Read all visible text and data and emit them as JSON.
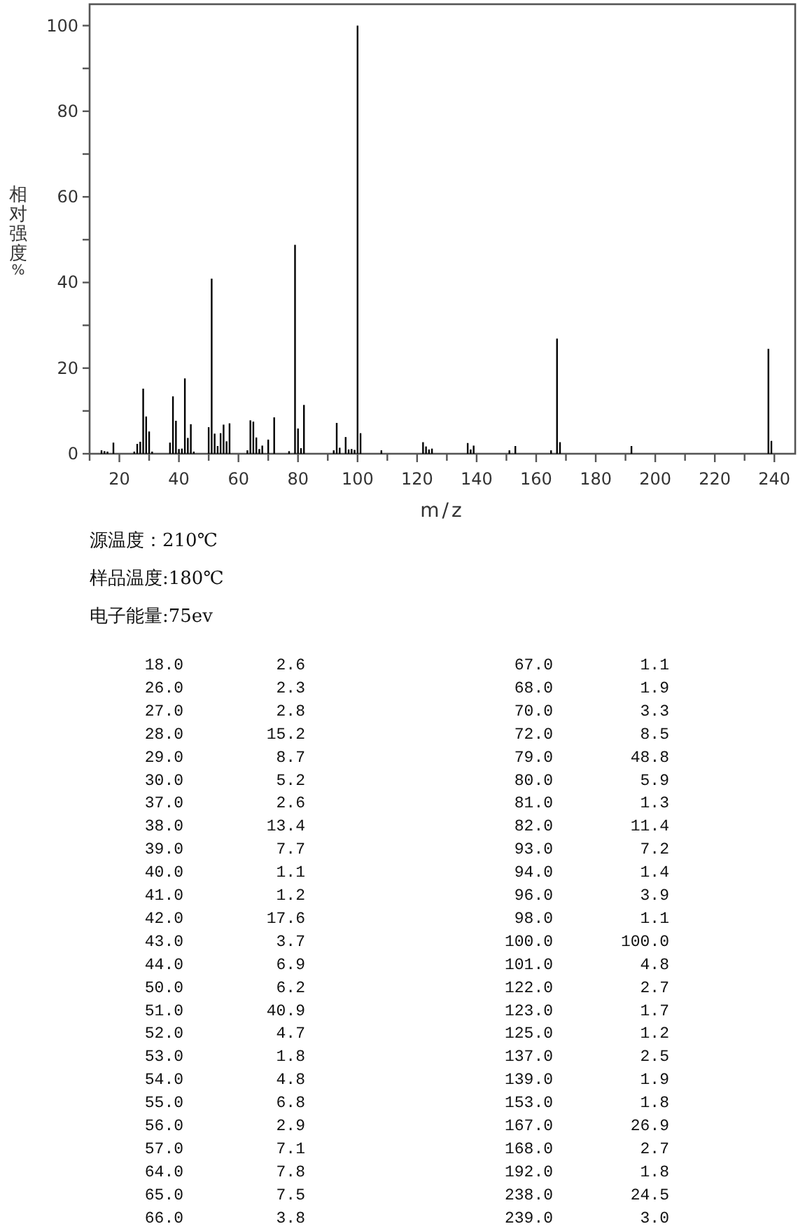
{
  "chart_data": {
    "type": "bar",
    "xlabel": "m/z",
    "ylabel": "相对强度%",
    "annotations": [
      "源温度：210℃",
      "样品温度:180℃",
      "电子能量:75ev",
      "18.0 2.6",
      "26.0 2.3",
      "27.0 2.8",
      "28.0 15.2",
      "29.0 8.7",
      "30.0 5.2",
      "37.0 2.6",
      "38.0 13.4",
      "39.0 7.7",
      "40.0 1.1",
      "41.0 1.2",
      "42.0 17.6",
      "43.0 3.7",
      "44.0 6.9",
      "50.0 6.2",
      "51.0 40.9",
      "52.0 4.7",
      "53.0 1.8",
      "54.0 4.8",
      "55.0 6.8",
      "56.0 2.9",
      "57.0 7.1",
      "64.0 7.8",
      "65.0 7.5",
      "66.0 3.8",
      "67.0 1.1",
      "68.0 1.9",
      "70.0 3.3",
      "72.0 8.5",
      "79.0 48.8",
      "80.0 5.9",
      "81.0 1.3",
      "82.0 11.4",
      "93.0 7.2",
      "94.0 1.4",
      "96.0 3.9",
      "98.0 1.1",
      "100.0 100.0",
      "101.0 4.8",
      "122.0 2.7",
      "123.0 1.7",
      "125.0 1.2",
      "137.0 2.5",
      "139.0 1.9",
      "153.0 1.8",
      "167.0 26.9",
      "168.0 2.7",
      "192.0 1.8",
      "238.0 24.5",
      "239.0 3.0"
    ],
    "x": [
      14,
      15,
      16,
      18,
      25,
      26,
      27,
      28,
      29,
      30,
      31,
      37,
      38,
      39,
      40,
      41,
      42,
      43,
      44,
      45,
      50,
      51,
      52,
      53,
      54,
      55,
      56,
      57,
      63,
      64,
      65,
      66,
      67,
      68,
      70,
      72,
      77,
      79,
      80,
      81,
      82,
      92,
      93,
      94,
      96,
      97,
      98,
      99,
      100,
      101,
      108,
      122,
      123,
      124,
      125,
      137,
      138,
      139,
      151,
      153,
      165,
      167,
      168,
      192,
      238,
      239
    ],
    "values": [
      0.8,
      0.6,
      0.5,
      2.6,
      0.5,
      2.3,
      2.8,
      15.2,
      8.7,
      5.2,
      0.5,
      2.6,
      13.4,
      7.7,
      1.1,
      1.2,
      17.6,
      3.7,
      6.9,
      0.5,
      6.2,
      40.9,
      4.7,
      1.8,
      4.8,
      6.8,
      2.9,
      7.1,
      0.8,
      7.8,
      7.5,
      3.8,
      1.1,
      1.9,
      3.3,
      8.5,
      0.6,
      48.8,
      5.9,
      1.3,
      11.4,
      0.8,
      7.2,
      1.4,
      3.9,
      1.0,
      1.1,
      0.9,
      100,
      4.8,
      0.8,
      2.7,
      1.7,
      1.0,
      1.2,
      2.5,
      1.0,
      1.9,
      0.8,
      1.8,
      0.8,
      26.9,
      2.7,
      1.8,
      24.5,
      3.0
    ],
    "color": "#000000",
    "xlim": [
      10,
      247
    ],
    "ylim": [
      0,
      105
    ],
    "xticks": [
      {
        "value": 10,
        "label": null
      },
      20,
      {
        "value": 30,
        "label": null
      },
      40,
      {
        "value": 50,
        "label": null
      },
      60,
      {
        "value": 70,
        "label": null
      },
      80,
      {
        "value": 90,
        "label": null
      },
      100,
      {
        "value": 110,
        "label": null
      },
      120,
      {
        "value": 130,
        "label": null
      },
      140,
      {
        "value": 150,
        "label": null
      },
      160,
      {
        "value": 170,
        "label": null
      },
      180,
      {
        "value": 190,
        "label": null
      },
      200,
      {
        "value": 210,
        "label": null
      },
      220,
      {
        "value": 230,
        "label": null
      },
      240
    ],
    "yticks": [
      0,
      {
        "value": 10,
        "label": null
      },
      20,
      {
        "value": 30,
        "label": null
      },
      40,
      {
        "value": 50,
        "label": null
      },
      60,
      {
        "value": 70,
        "label": null
      },
      80,
      {
        "value": 90,
        "label": null
      },
      100
    ],
    "grid": false,
    "legend": false
  }
}
